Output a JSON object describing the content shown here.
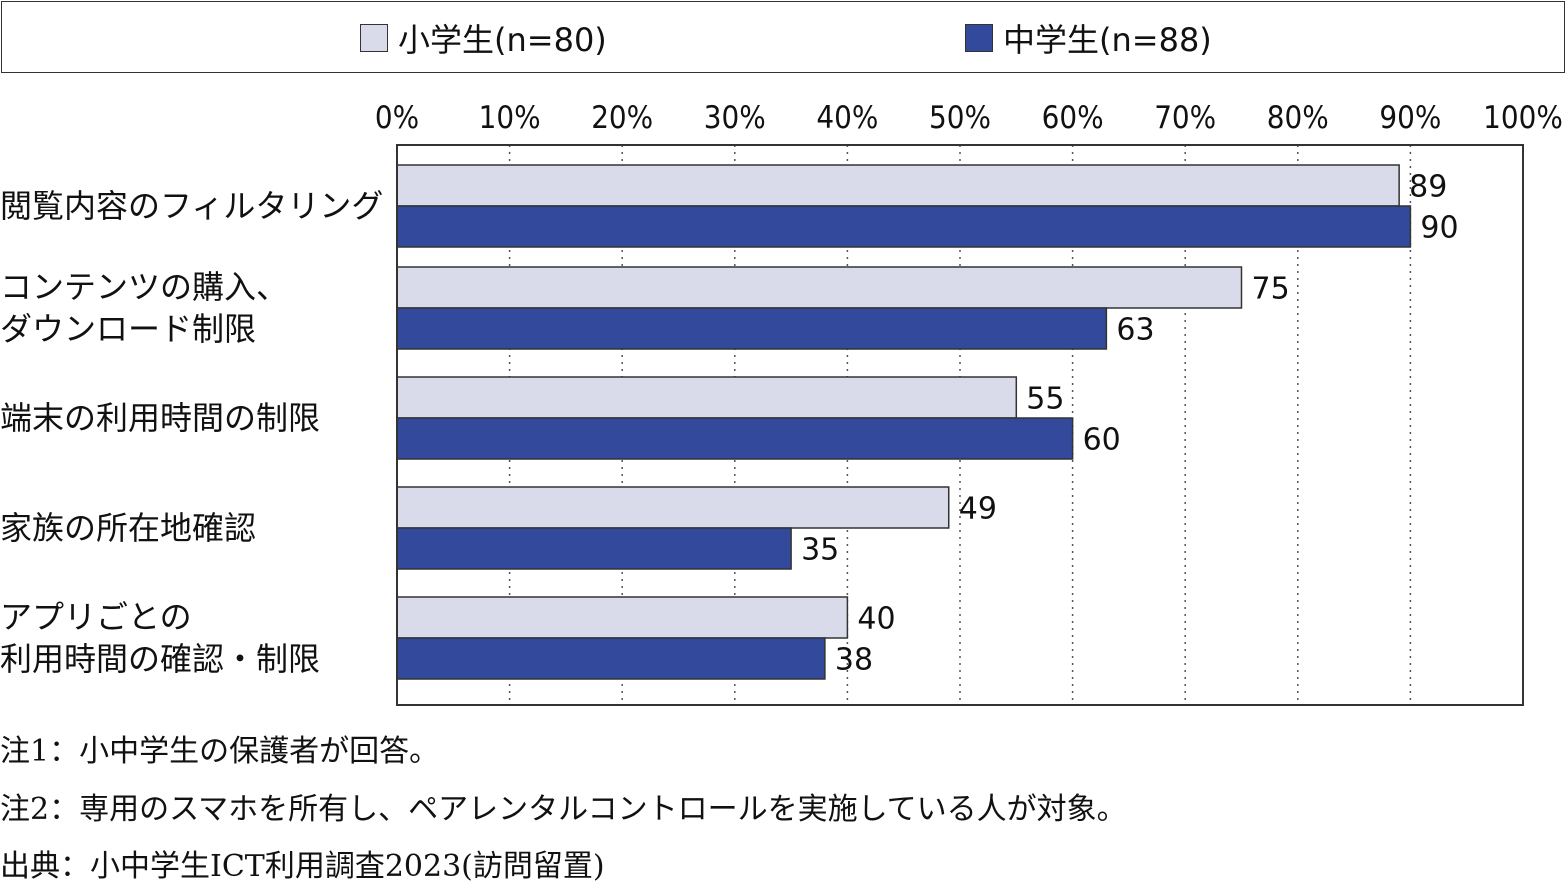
{
  "chart_data": {
    "type": "bar",
    "orientation": "horizontal",
    "categories": [
      [
        "閲覧内容のフィルタリング"
      ],
      [
        "コンテンツの購入、",
        "ダウンロード制限"
      ],
      [
        "端末の利用時間の制限"
      ],
      [
        "家族の所在地確認"
      ],
      [
        "アプリごとの",
        "利用時間の確認・制限"
      ]
    ],
    "series": [
      {
        "name": "小学生(n=80)",
        "values": [
          89,
          75,
          55,
          49,
          40
        ],
        "color": "#d9dbea"
      },
      {
        "name": "中学生(n=88)",
        "values": [
          90,
          63,
          60,
          35,
          38
        ],
        "color": "#334a9c"
      }
    ],
    "xlim": [
      0,
      100
    ],
    "xticks": [
      "0%",
      "10%",
      "20%",
      "30%",
      "40%",
      "50%",
      "60%",
      "70%",
      "80%",
      "90%",
      "100%"
    ],
    "grid": true,
    "legend_position": "top"
  },
  "notes": [
    "注1：小中学生の保護者が回答。",
    "注2：専用のスマホを所有し、ペアレンタルコントロールを実施している人が対象。",
    "出典：小中学生ICT利用調査2023(訪問留置)"
  ]
}
